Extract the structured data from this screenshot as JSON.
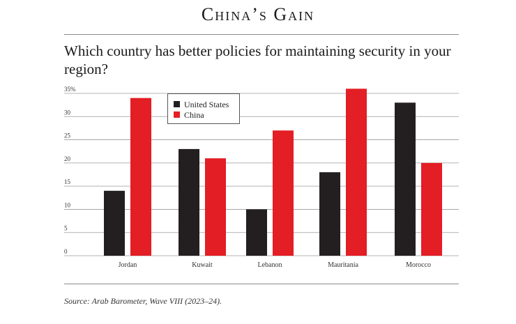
{
  "header": {
    "title": "China’s Gain"
  },
  "subtitle": "Which country has better policies for maintaining security in your region?",
  "source": "Source: Arab Barometer, Wave VIII (2023–24).",
  "colors": {
    "united_states": "#231f20",
    "china": "#e31e24"
  },
  "chart_data": {
    "type": "bar",
    "categories": [
      "Jordan",
      "Kuwait",
      "Lebanon",
      "Mauritania",
      "Morocco"
    ],
    "series": [
      {
        "name": "United States",
        "values": [
          14,
          23,
          10,
          18,
          33
        ]
      },
      {
        "name": "China",
        "values": [
          34,
          21,
          27,
          36,
          20
        ]
      }
    ],
    "ylim": [
      0,
      35
    ],
    "yticks": [
      "0",
      "5",
      "10",
      "15",
      "20",
      "25",
      "30",
      "35%"
    ],
    "grid": true,
    "legend": "top-left"
  }
}
